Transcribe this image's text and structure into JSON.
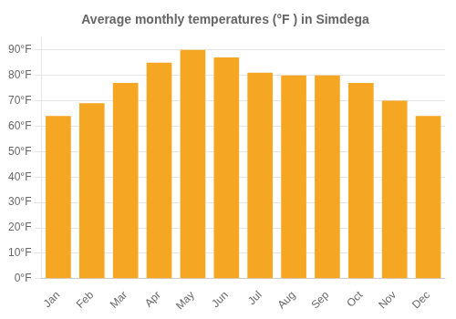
{
  "chart_data": {
    "type": "bar",
    "title": "Average monthly temperatures (°F ) in Simdega",
    "categories": [
      "Jan",
      "Feb",
      "Mar",
      "Apr",
      "May",
      "Jun",
      "Jul",
      "Aug",
      "Sep",
      "Oct",
      "Nov",
      "Dec"
    ],
    "values": [
      64,
      69,
      77,
      85,
      90,
      87,
      81,
      80,
      80,
      77,
      70,
      64
    ],
    "color": "#F5A623",
    "ylim": [
      0,
      95
    ],
    "yticks": [
      {
        "value": 0,
        "label": "0°F"
      },
      {
        "value": 10,
        "label": "10°F"
      },
      {
        "value": 20,
        "label": "20°F"
      },
      {
        "value": 30,
        "label": "30°F"
      },
      {
        "value": 40,
        "label": "40°F"
      },
      {
        "value": 50,
        "label": "50°F"
      },
      {
        "value": 60,
        "label": "60°F"
      },
      {
        "value": 70,
        "label": "70°F"
      },
      {
        "value": 80,
        "label": "80°F"
      },
      {
        "value": 90,
        "label": "90°F"
      }
    ],
    "grid": true
  }
}
